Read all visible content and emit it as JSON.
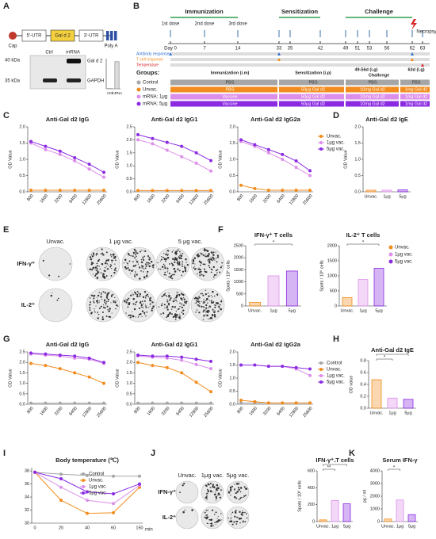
{
  "panel_labels": [
    "A",
    "B",
    "C",
    "D",
    "E",
    "F",
    "G",
    "H",
    "I",
    "J",
    "K"
  ],
  "construct": {
    "cap": "Cap",
    "parts": [
      "5'-UTR",
      "Gal d 2",
      "3'-UTR"
    ],
    "polya": "Poly A"
  },
  "blot": {
    "lanes": [
      "Ctrl",
      "mRNA"
    ],
    "markers": [
      "40 kDa",
      "35 kDa"
    ],
    "bands": [
      "Gal d 2",
      "GAPDH"
    ]
  },
  "timeline": {
    "phases": [
      "Immunization",
      "Sensitization",
      "Challenge"
    ],
    "doses": [
      "1st dose",
      "2nd dose",
      "3rd dose"
    ],
    "days": [
      "Day 0",
      "7",
      "14",
      "33",
      "35",
      "42",
      "49",
      "51",
      "53",
      "56",
      "62",
      "63"
    ],
    "necropsy": "Necropsy",
    "tracks": [
      "Antibody response",
      "T cell response",
      "Temperature"
    ]
  },
  "groups": {
    "title": "Groups:",
    "headers": [
      "Immunization (i.m)",
      "Sensitization (i.p)",
      "49-56d (i.g)",
      "Challenge",
      "63d (i.g)"
    ],
    "rows": [
      [
        "Control",
        "PBS",
        "PBS",
        "PBS",
        "PBS"
      ],
      [
        "Unvac.",
        "PBS",
        "50μg Gal d2",
        "10mg Gal d2",
        "1mg Gal d2"
      ],
      [
        "mRNA: 1μg",
        "Vaccine",
        "50μg Gal d2",
        "10mg Gal d2",
        "1mg Gal d2"
      ],
      [
        "mRNA: 5μg",
        "Vaccine",
        "50μg Gal d2",
        "10mg Gal d2",
        "1mg Gal d2"
      ]
    ]
  },
  "elispot_E": {
    "columns": [
      "Unvac.",
      "1 μg vac.",
      "5 μg vac."
    ],
    "rows": [
      "IFN-γ⁺",
      "IL-2⁺"
    ]
  },
  "elispot_J": {
    "columns": [
      "Unvac.",
      "1μg vac.",
      "5μg vac."
    ],
    "rows": [
      "IFN-γ⁺",
      "IL-2⁺"
    ]
  },
  "chart_data": [
    {
      "type": "line",
      "title": "Anti-Gal d2 IgG",
      "ylabel": "OD Value",
      "categories": [
        "800",
        "1600",
        "3200",
        "6400",
        "12800",
        "25600"
      ],
      "ylim": [
        0,
        2
      ],
      "yticks": [
        {
          "value": 0,
          "label": "0.0"
        },
        0.5,
        {
          "value": 1,
          "label": "1.0"
        },
        1.5,
        {
          "value": 2,
          "label": "2.0"
        }
      ],
      "series": [
        {
          "name": "Unvac.",
          "color": "#f28c1e",
          "values": [
            0.05,
            0.05,
            0.05,
            0.05,
            0.05,
            0.05
          ]
        },
        {
          "name": "1μg vac.",
          "color": "#dc8fea",
          "values": [
            1.5,
            1.3,
            1.15,
            0.95,
            0.7,
            0.45
          ]
        },
        {
          "name": "5μg vac.",
          "color": "#8a2be2",
          "values": [
            1.55,
            1.4,
            1.25,
            1.05,
            0.85,
            0.6
          ]
        }
      ]
    },
    {
      "type": "line",
      "title": "Anti-Gal d2 IgG1",
      "ylabel": "OD Value",
      "categories": [
        "800",
        "1600",
        "3200",
        "6400",
        "12800",
        "25600"
      ],
      "ylim": [
        0,
        2.5
      ],
      "yticks": [
        {
          "value": 0,
          "label": "0.0"
        },
        0.5,
        {
          "value": 1,
          "label": "1.0"
        },
        1.5,
        {
          "value": 2,
          "label": "2.0"
        },
        2.5
      ],
      "series": [
        {
          "name": "Unvac.",
          "color": "#f28c1e",
          "values": [
            0.05,
            0.05,
            0.05,
            0.05,
            0.05,
            0.05
          ]
        },
        {
          "name": "1μg vac.",
          "color": "#dc8fea",
          "values": [
            2.0,
            1.85,
            1.6,
            1.35,
            1.1,
            0.8
          ]
        },
        {
          "name": "5μg vac.",
          "color": "#8a2be2",
          "values": [
            2.2,
            2.05,
            1.9,
            1.75,
            1.5,
            1.2
          ]
        }
      ]
    },
    {
      "type": "line",
      "title": "Anti-Gal d2 IgG2a",
      "ylabel": "OD Value",
      "legend": true,
      "categories": [
        "800",
        "1600",
        "3200",
        "6400",
        "12800",
        "25600"
      ],
      "ylim": [
        0,
        2
      ],
      "yticks": [
        {
          "value": 0,
          "label": "0.0"
        },
        0.5,
        {
          "value": 1,
          "label": "1.0"
        },
        1.5,
        {
          "value": 2,
          "label": "2.0"
        }
      ],
      "series": [
        {
          "name": "Unvac.",
          "color": "#f28c1e",
          "values": [
            0.2,
            0.1,
            0.05,
            0.05,
            0.05,
            0.05
          ]
        },
        {
          "name": "1μg vac.",
          "color": "#dc8fea",
          "values": [
            1.55,
            1.4,
            1.2,
            1.0,
            0.75,
            0.5
          ]
        },
        {
          "name": "5μg vac.",
          "color": "#8a2be2",
          "values": [
            1.6,
            1.45,
            1.3,
            1.15,
            0.95,
            0.65
          ]
        }
      ]
    },
    {
      "type": "bar",
      "title": "Anti-Gal d2 IgE",
      "ylabel": "OD Value",
      "categories": [
        "Unvac.",
        "1μg",
        "5μg"
      ],
      "values": [
        0.05,
        0.05,
        0.06
      ],
      "colors": [
        "#f28c1e",
        "#dc8fea",
        "#8a2be2"
      ],
      "ylim": [
        0,
        2
      ],
      "yticks": [
        {
          "value": 0,
          "label": "0.0"
        },
        0.5,
        {
          "value": 1,
          "label": "1.0"
        },
        1.5,
        {
          "value": 2,
          "label": "2.0"
        }
      ]
    },
    {
      "type": "bar",
      "title": "IFN-γ⁺ T cells",
      "ylabel": "Spots / 10⁶ cells",
      "categories": [
        "Unvac.",
        "1μg",
        "5μg"
      ],
      "values": [
        150,
        1250,
        1450
      ],
      "colors": [
        "#f28c1e",
        "#dc8fea",
        "#8a2be2"
      ],
      "ylim": [
        0,
        2500
      ],
      "yticks": [
        0,
        500,
        1000,
        1500,
        2000,
        2500
      ],
      "annotations": [
        "*"
      ]
    },
    {
      "type": "bar",
      "title": "IL-2⁺ T cells",
      "ylabel": "Spots / 10⁶ cells",
      "categories": [
        "Unvac.",
        "1μg",
        "5μg"
      ],
      "values": [
        280,
        880,
        1250
      ],
      "colors": [
        "#f28c1e",
        "#dc8fea",
        "#8a2be2"
      ],
      "ylim": [
        0,
        2000
      ],
      "yticks": [
        0,
        500,
        1000,
        1500,
        2000
      ],
      "annotations": [
        "*"
      ],
      "legend": [
        "Unvac.",
        "1μg vac.",
        "5μg vac."
      ]
    },
    {
      "type": "line",
      "title": "Anti-Gal d2 IgG",
      "ylabel": "OD Value",
      "categories": [
        "800",
        "1600",
        "3200",
        "6400",
        "12800",
        "25600"
      ],
      "ylim": [
        0,
        2.5
      ],
      "yticks": [
        {
          "value": 0,
          "label": "0.0"
        },
        0.5,
        {
          "value": 1,
          "label": "1.0"
        },
        1.5,
        {
          "value": 2,
          "label": "2.0"
        },
        2.5
      ],
      "series": [
        {
          "name": "Control",
          "color": "#a6a6a6",
          "values": [
            0.05,
            0.05,
            0.05,
            0.05,
            0.05,
            0.05
          ]
        },
        {
          "name": "Unvac.",
          "color": "#f28c1e",
          "values": [
            1.95,
            1.85,
            1.7,
            1.5,
            1.3,
            1.0
          ]
        },
        {
          "name": "1μg vac.",
          "color": "#dc8fea",
          "values": [
            2.4,
            2.35,
            2.3,
            2.2,
            2.15,
            1.95
          ]
        },
        {
          "name": "5μg vac.",
          "color": "#8a2be2",
          "values": [
            2.45,
            2.4,
            2.35,
            2.3,
            2.2,
            2.0
          ]
        }
      ]
    },
    {
      "type": "line",
      "title": "Anti-Gal d2 IgG1",
      "ylabel": "OD Value",
      "categories": [
        "800",
        "1600",
        "3200",
        "6400",
        "12800",
        "25600"
      ],
      "ylim": [
        0,
        2.5
      ],
      "yticks": [
        {
          "value": 0,
          "label": "0.0"
        },
        0.5,
        {
          "value": 1,
          "label": "1.0"
        },
        1.5,
        {
          "value": 2,
          "label": "2.0"
        },
        2.5
      ],
      "series": [
        {
          "name": "Control",
          "color": "#a6a6a6",
          "values": [
            0.05,
            0.05,
            0.05,
            0.05,
            0.05,
            0.05
          ]
        },
        {
          "name": "Unvac.",
          "color": "#f28c1e",
          "values": [
            2.0,
            1.85,
            1.75,
            1.5,
            1.05,
            0.6
          ]
        },
        {
          "name": "1μg vac.",
          "color": "#dc8fea",
          "values": [
            2.3,
            2.25,
            2.2,
            2.1,
            1.9,
            1.7
          ]
        },
        {
          "name": "5μg vac.",
          "color": "#8a2be2",
          "values": [
            2.35,
            2.3,
            2.3,
            2.25,
            2.15,
            2.05
          ]
        }
      ]
    },
    {
      "type": "line",
      "title": "Anti-Gal d2 IgG2a",
      "ylabel": "OD Value",
      "legend": true,
      "categories": [
        "800",
        "1600",
        "3200",
        "6400",
        "12800",
        "25600"
      ],
      "ylim": [
        0,
        2
      ],
      "yticks": [
        {
          "value": 0,
          "label": "0.0"
        },
        0.5,
        {
          "value": 1,
          "label": "1.0"
        },
        1.5,
        {
          "value": 2,
          "label": "2.0"
        }
      ],
      "series": [
        {
          "name": "Control",
          "color": "#a6a6a6",
          "values": [
            0.05,
            0.05,
            0.05,
            0.05,
            0.05,
            0.05
          ]
        },
        {
          "name": "Unvac.",
          "color": "#f28c1e",
          "values": [
            0.15,
            0.1,
            0.05,
            0.05,
            0.05,
            0.05
          ]
        },
        {
          "name": "1μg vac.",
          "color": "#dc8fea",
          "values": [
            1.5,
            1.5,
            1.45,
            1.45,
            1.35,
            1.1
          ]
        },
        {
          "name": "5μg vac.",
          "color": "#8a2be2",
          "values": [
            1.5,
            1.5,
            1.45,
            1.45,
            1.4,
            1.35
          ]
        }
      ]
    },
    {
      "type": "bar",
      "title": "Anti-Gal d2 IgE",
      "ylabel": "OD value",
      "categories": [
        "Unvac.",
        "1μg",
        "5μg"
      ],
      "values": [
        0.48,
        0.17,
        0.15
      ],
      "colors": [
        "#f28c1e",
        "#dc8fea",
        "#8a2be2"
      ],
      "ylim": [
        0,
        0.8
      ],
      "yticks": [
        {
          "value": 0,
          "label": "0.0"
        },
        0.2,
        0.4,
        0.6,
        0.8
      ],
      "annotations": [
        "*",
        "*"
      ]
    },
    {
      "type": "line",
      "title": "Body temperature (℃)",
      "xlabel": "min",
      "legend": true,
      "categories": [
        "0",
        "20",
        "40",
        "60",
        "150"
      ],
      "ylim": [
        30,
        38.5
      ],
      "yticks": [
        30,
        32,
        34,
        36,
        38
      ],
      "series": [
        {
          "name": "Control",
          "color": "#a6a6a6",
          "values": [
            37.8,
            37.5,
            37.3,
            37.2,
            37.2
          ]
        },
        {
          "name": "Unvac.",
          "color": "#f28c1e",
          "values": [
            37.8,
            33.5,
            31.5,
            31.6,
            35.5
          ]
        },
        {
          "name": "1μg vac.",
          "color": "#dc8fea",
          "values": [
            37.8,
            35.5,
            33.5,
            33.0,
            35.8
          ]
        },
        {
          "name": "5μg vac.",
          "color": "#8a2be2",
          "values": [
            37.8,
            36.8,
            34.8,
            34.5,
            36.0
          ]
        }
      ]
    },
    {
      "type": "bar",
      "title": "IFN-γ⁺ T cells",
      "ylabel": "Spots / 10⁶ cells",
      "categories": [
        "Unvac.",
        "1μg",
        "5μg"
      ],
      "values": [
        20,
        250,
        210
      ],
      "colors": [
        "#f28c1e",
        "#dc8fea",
        "#8a2be2"
      ],
      "ylim": [
        0,
        600
      ],
      "yticks": [
        0,
        200,
        400,
        600
      ],
      "annotations": [
        "**",
        "*"
      ]
    },
    {
      "type": "bar",
      "title": "Serum IFN-γ",
      "ylabel": "pg / ml",
      "categories": [
        "Unvac.",
        "1μg",
        "5μg"
      ],
      "values": [
        200,
        1700,
        550
      ],
      "colors": [
        "#f28c1e",
        "#dc8fea",
        "#8a2be2"
      ],
      "ylim": [
        0,
        4000
      ],
      "yticks": [
        0,
        1000,
        2000,
        3000,
        4000
      ],
      "annotations": [
        "*"
      ]
    },
    {
      "type": "bar",
      "categories": [
        "Ctrl",
        "mRNA"
      ],
      "values": [
        0.02,
        1.8
      ],
      "colors": [
        "#999999",
        "#999999"
      ],
      "ylim": [
        0,
        2
      ]
    }
  ]
}
